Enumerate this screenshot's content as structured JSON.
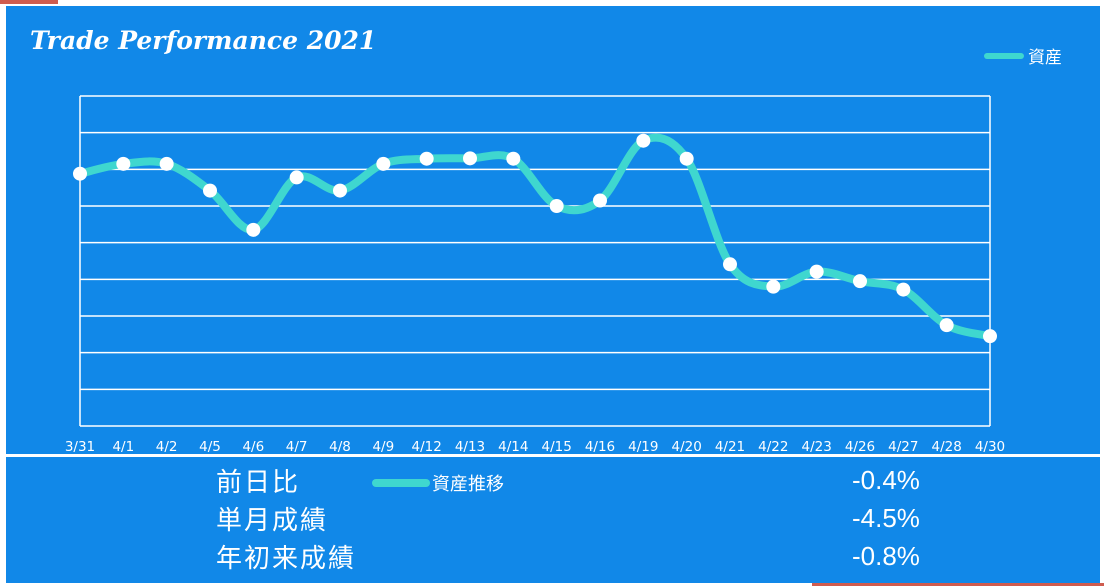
{
  "title": "Trade Performance 2021",
  "legend": {
    "label": "資産"
  },
  "colors": {
    "panel": "#1188e8",
    "line": "#3fd7cf",
    "grid": "#ffffff",
    "marker": "#ffffff",
    "accent": "#cf5c4f"
  },
  "chart_data": {
    "type": "line",
    "categories": [
      "3/31",
      "4/1",
      "4/2",
      "4/5",
      "4/6",
      "4/7",
      "4/8",
      "4/9",
      "4/12",
      "4/13",
      "4/14",
      "4/15",
      "4/16",
      "4/19",
      "4/20",
      "4/21",
      "4/22",
      "4/23",
      "4/26",
      "4/27",
      "4/28",
      "4/30"
    ],
    "series": [
      {
        "name": "資産",
        "values": [
          6.88,
          7.15,
          7.15,
          6.42,
          5.35,
          6.78,
          6.42,
          7.15,
          7.29,
          7.3,
          7.29,
          6.0,
          6.15,
          7.78,
          7.29,
          4.41,
          3.8,
          4.21,
          3.95,
          3.72,
          2.75,
          2.45
        ]
      }
    ],
    "ylim": [
      0,
      9
    ],
    "grid": true,
    "legend_position": "top-right",
    "markers": true,
    "smooth": true
  },
  "stats": {
    "series_label": "資産推移",
    "rows": [
      {
        "label": "前日比",
        "value": "-0.4%"
      },
      {
        "label": "単月成績",
        "value": "-4.5%"
      },
      {
        "label": "年初来成績",
        "value": "-0.8%"
      }
    ]
  }
}
